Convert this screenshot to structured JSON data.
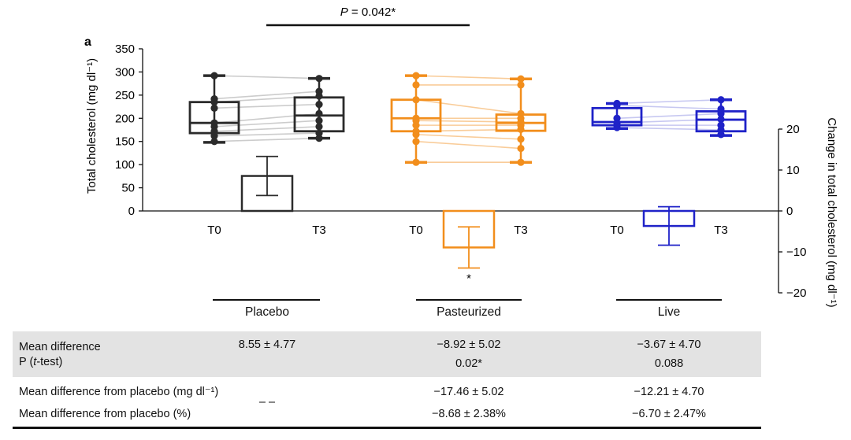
{
  "panel_letter": "a",
  "significance": {
    "label": "P = 0.042*"
  },
  "chart_data": {
    "type": "box",
    "ylabel_left": "Total cholesterol (mg dl⁻¹)",
    "ylabel_right": "Change in total cholesterol (mg dl⁻¹)",
    "left_axis": {
      "ylim": [
        0,
        350
      ],
      "ticks": [
        "0",
        "50",
        "100",
        "150",
        "200",
        "250",
        "300",
        "350"
      ]
    },
    "right_axis": {
      "ylim": [
        -20,
        20
      ],
      "ticks": [
        "−20",
        "−10",
        "0",
        "10",
        "20"
      ]
    },
    "xtick_labels": [
      "T0",
      "T3"
    ],
    "colors": {
      "Placebo": "#2b2b2b",
      "Pasteurized": "#f28e1c",
      "Live": "#1f22c8"
    },
    "groups": [
      {
        "name": "Placebo",
        "T0": {
          "whisker_low": 148,
          "q1": 168,
          "median": 190,
          "q3": 235,
          "whisker_high": 292,
          "points": [
            292,
            242,
            235,
            222,
            190,
            182,
            172,
            162,
            150
          ]
        },
        "T3": {
          "whisker_low": 157,
          "q1": 172,
          "median": 206,
          "q3": 245,
          "whisker_high": 286,
          "points": [
            286,
            258,
            248,
            230,
            210,
            195,
            182,
            168,
            157
          ]
        },
        "change": {
          "mean": 8.55,
          "err": 4.77
        }
      },
      {
        "name": "Pasteurized",
        "T0": {
          "whisker_low": 105,
          "q1": 172,
          "median": 200,
          "q3": 240,
          "whisker_high": 292,
          "points": [
            292,
            272,
            240,
            200,
            195,
            185,
            172,
            165,
            150,
            105
          ]
        },
        "T3": {
          "whisker_low": 105,
          "q1": 173,
          "median": 190,
          "q3": 208,
          "whisker_high": 285,
          "points": [
            285,
            272,
            210,
            200,
            192,
            185,
            176,
            155,
            135,
            105
          ]
        },
        "change": {
          "mean": -8.92,
          "err": 5.02,
          "label": "*"
        }
      },
      {
        "name": "Live",
        "T0": {
          "whisker_low": 178,
          "q1": 185,
          "median": 192,
          "q3": 222,
          "whisker_high": 232,
          "points": [
            232,
            228,
            200,
            190,
            185,
            180
          ]
        },
        "T3": {
          "whisker_low": 163,
          "q1": 172,
          "median": 197,
          "q3": 215,
          "whisker_high": 240,
          "points": [
            240,
            220,
            210,
            198,
            185,
            175,
            165
          ]
        },
        "change": {
          "mean": -3.67,
          "err": 4.7
        }
      }
    ]
  },
  "table": {
    "row1": {
      "label": "Mean difference",
      "values": [
        "8.55 ± 4.77",
        "−8.92 ± 5.02",
        "−3.67 ± 4.70"
      ]
    },
    "row2": {
      "label_prefix": "P (",
      "label_italic": "t",
      "label_suffix": "-test)",
      "values": [
        "",
        "0.02*",
        "0.088"
      ]
    },
    "row3": {
      "label": "Mean difference from placebo (mg dl⁻¹)",
      "values": [
        "",
        "−17.46 ± 5.02",
        "−12.21 ± 4.70"
      ]
    },
    "row4": {
      "label": "Mean difference from placebo (%)",
      "values": [
        "",
        "−8.68 ± 2.38%",
        "−6.70 ± 2.47%"
      ]
    },
    "placebo_dash": "– –"
  }
}
